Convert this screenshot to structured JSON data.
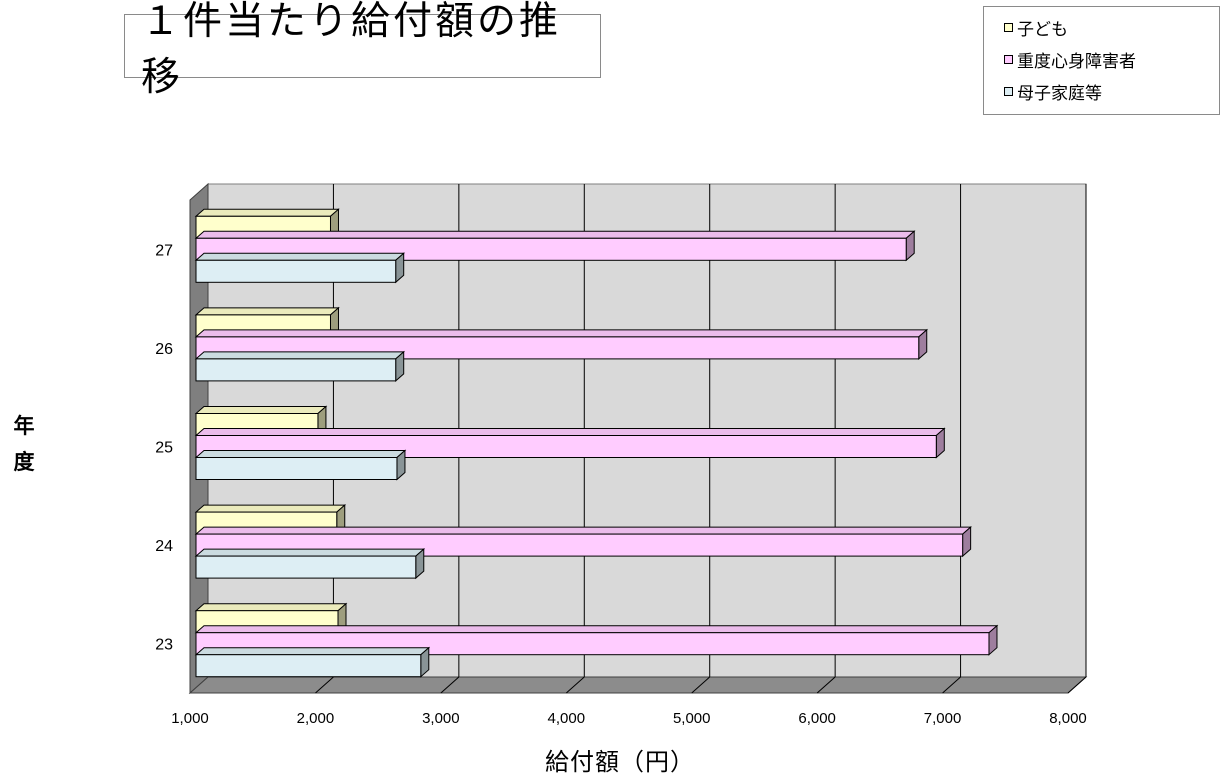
{
  "chart_data": {
    "type": "bar",
    "orientation": "horizontal",
    "title": "１件当たり給付額の推移",
    "xlabel": "給付額（円）",
    "ylabel": "年度",
    "categories": [
      "23",
      "24",
      "25",
      "26",
      "27"
    ],
    "series": [
      {
        "name": "子ども",
        "color": "#ffffcc",
        "values": [
          2180,
          2170,
          2020,
          2120,
          2120
        ]
      },
      {
        "name": "重度心身障害者",
        "color": "#ffccff",
        "values": [
          7370,
          7160,
          6950,
          6810,
          6710
        ]
      },
      {
        "name": "母子家庭等",
        "color": "#ddeef4",
        "values": [
          2840,
          2800,
          2650,
          2640,
          2640
        ]
      }
    ],
    "xlim": [
      1000,
      8000
    ],
    "xticks": [
      "1,000",
      "2,000",
      "3,000",
      "4,000",
      "5,000",
      "6,000",
      "7,000",
      "8,000"
    ],
    "grid": true,
    "legend_position": "top-right",
    "style": "3d"
  }
}
